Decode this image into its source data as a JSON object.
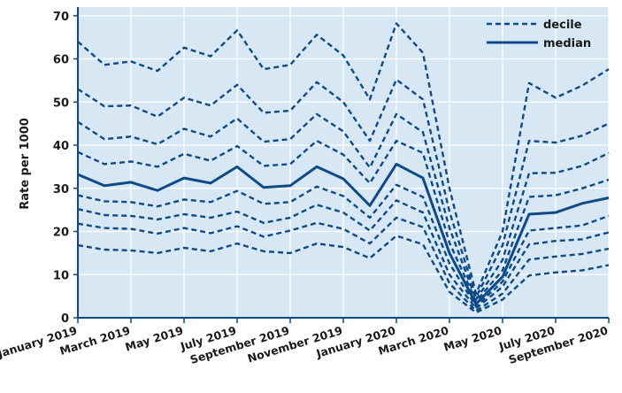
{
  "chart_data": {
    "type": "line",
    "title": "",
    "xlabel": "",
    "ylabel": "Rate per 1000",
    "ylim": [
      0,
      72
    ],
    "yticks": [
      0,
      10,
      20,
      30,
      40,
      50,
      60,
      70
    ],
    "grid": true,
    "legend_position": "top-right",
    "x_tick_labels": [
      "January 2019",
      "March 2019",
      "May 2019",
      "July 2019",
      "September 2019",
      "November 2019",
      "January 2020",
      "March 2020",
      "May 2020",
      "July 2020",
      "September 2020"
    ],
    "x": [
      "2019-01",
      "2019-02",
      "2019-03",
      "2019-04",
      "2019-05",
      "2019-06",
      "2019-07",
      "2019-08",
      "2019-09",
      "2019-10",
      "2019-11",
      "2019-12",
      "2020-01",
      "2020-02",
      "2020-03",
      "2020-04",
      "2020-05",
      "2020-06",
      "2020-07",
      "2020-08",
      "2020-09"
    ],
    "legend": [
      {
        "label": "decile",
        "style": "dashed"
      },
      {
        "label": "median",
        "style": "solid"
      }
    ],
    "series": [
      {
        "style": "dashed",
        "values": [
          16.8,
          15.8,
          15.6,
          15.0,
          16.2,
          15.4,
          17.2,
          15.4,
          15.0,
          17.2,
          16.4,
          13.8,
          19.0,
          17.0,
          6.0,
          1.2,
          4.2,
          9.8,
          10.5,
          11.0,
          12.2
        ]
      },
      {
        "style": "dashed",
        "values": [
          21.8,
          20.8,
          20.6,
          19.5,
          20.8,
          19.6,
          21.2,
          18.8,
          20.2,
          22.0,
          20.6,
          17.2,
          23.2,
          21.0,
          8.0,
          1.6,
          5.6,
          13.5,
          14.2,
          14.8,
          16.0
        ]
      },
      {
        "style": "dashed",
        "values": [
          25.2,
          23.8,
          23.6,
          22.8,
          24.0,
          23.2,
          24.6,
          22.0,
          23.2,
          26.2,
          24.4,
          20.2,
          27.2,
          24.4,
          10.0,
          2.2,
          7.2,
          17.0,
          17.8,
          18.2,
          19.8
        ]
      },
      {
        "style": "dashed",
        "values": [
          28.4,
          27.0,
          26.8,
          25.8,
          27.4,
          26.8,
          29.4,
          26.4,
          26.8,
          30.4,
          28.2,
          23.2,
          30.8,
          28.0,
          12.6,
          2.6,
          8.4,
          20.2,
          20.8,
          21.4,
          23.6
        ]
      },
      {
        "style": "solid",
        "values": [
          33.2,
          30.6,
          31.4,
          29.5,
          32.4,
          31.2,
          35.0,
          30.2,
          30.6,
          35.0,
          32.2,
          26.0,
          35.6,
          32.4,
          15.0,
          3.2,
          9.5,
          24.0,
          24.4,
          26.5,
          27.8
        ]
      },
      {
        "style": "dashed",
        "values": [
          38.4,
          35.6,
          36.2,
          35.0,
          38.0,
          36.4,
          39.8,
          35.2,
          35.6,
          41.0,
          37.8,
          31.2,
          41.0,
          38.2,
          17.4,
          3.8,
          11.0,
          28.0,
          28.4,
          30.0,
          32.0
        ]
      },
      {
        "style": "dashed",
        "values": [
          45.4,
          41.4,
          42.0,
          40.2,
          43.8,
          42.0,
          46.2,
          40.8,
          41.4,
          47.2,
          43.2,
          34.8,
          47.2,
          43.0,
          20.8,
          4.2,
          13.4,
          33.5,
          33.6,
          35.2,
          38.2
        ]
      },
      {
        "style": "dashed",
        "values": [
          53.0,
          49.0,
          49.2,
          46.6,
          51.0,
          49.2,
          54.0,
          47.5,
          48.0,
          54.6,
          50.0,
          41.0,
          55.2,
          50.6,
          24.6,
          4.8,
          16.8,
          41.0,
          40.6,
          42.2,
          45.0
        ]
      },
      {
        "style": "dashed",
        "values": [
          64.0,
          58.6,
          59.4,
          57.2,
          62.6,
          60.6,
          66.6,
          57.6,
          58.6,
          65.6,
          60.8,
          50.6,
          68.2,
          61.4,
          30.0,
          5.6,
          20.0,
          54.4,
          51.0,
          53.8,
          57.6
        ]
      }
    ]
  },
  "colors": {
    "line": "#0f4a86",
    "plot_bg": "#d7e8f4",
    "grid": "#ffffff",
    "axis": "#0f4a86"
  }
}
